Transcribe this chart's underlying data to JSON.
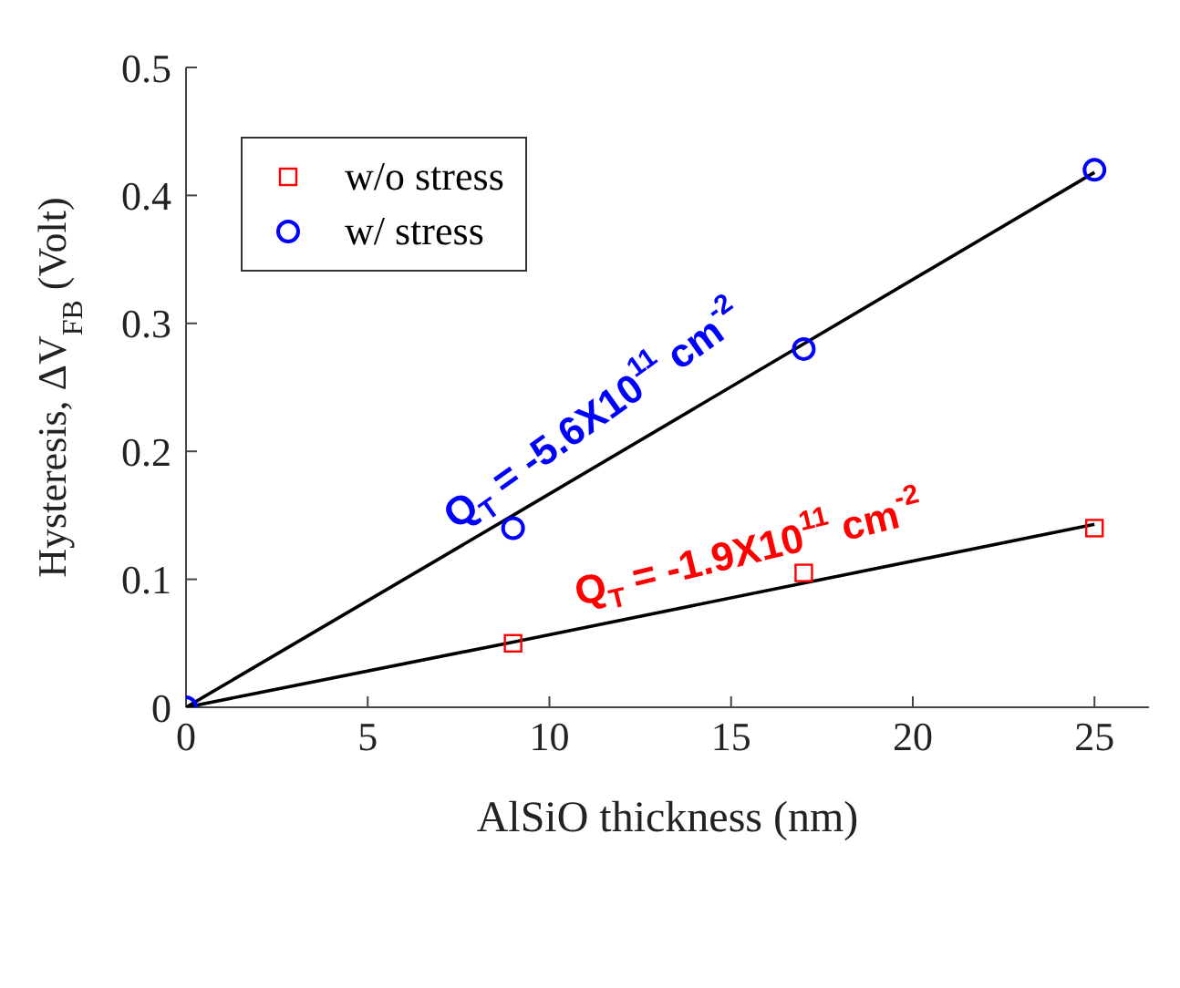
{
  "chart_data": {
    "type": "scatter",
    "xlabel": "AlSiO thickness (nm)",
    "ylabel": "Hysteresis, ΔV$_{FB}$ (Volt)",
    "x": [
      0,
      9,
      17,
      25
    ],
    "series": [
      {
        "name": "w/o stress",
        "color": "#ff0000",
        "marker": "square",
        "values": [
          null,
          0.05,
          0.105,
          0.14
        ]
      },
      {
        "name": "w/ stress",
        "color": "#0000ff",
        "marker": "circle",
        "values": [
          0,
          0.14,
          0.28,
          0.42
        ]
      },
      {
        "type": "line",
        "color": "#000000",
        "marker": "none",
        "values": [
          0,
          0.15,
          0.284,
          0.418
        ]
      },
      {
        "type": "line",
        "color": "#000000",
        "marker": "none",
        "values": [
          0,
          0.051,
          0.097,
          0.143
        ]
      }
    ],
    "annotations": [
      "Q$_{T}$ = -5.6X10$^{11}$ cm$^{-2}$",
      "Q$_{T}$ = -1.9X10$^{11}$ cm$^{-2}$"
    ],
    "xlim": [
      0,
      26.5
    ],
    "xticks": [
      0,
      5,
      10,
      15,
      20,
      25
    ],
    "ylim": [
      0,
      0.5
    ],
    "yticks": [
      0,
      0.1,
      0.2,
      0.3,
      0.4,
      0.5
    ],
    "grid": false,
    "legend": "top left"
  }
}
